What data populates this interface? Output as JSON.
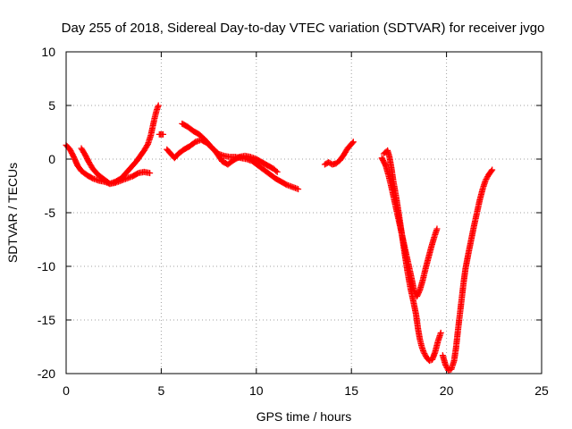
{
  "chart_data": {
    "type": "scatter",
    "title": "Day 255 of 2018, Sidereal Day-to-day VTEC variation (SDTVAR) for receiver jvgo",
    "xlabel": "GPS time / hours",
    "ylabel": "SDTVAR / TECUs",
    "xlim": [
      0,
      25
    ],
    "ylim": [
      -20,
      10
    ],
    "xticks": [
      0,
      5,
      10,
      15,
      20,
      25
    ],
    "yticks": [
      -20,
      -15,
      -10,
      -5,
      0,
      5,
      10
    ],
    "grid": true,
    "marker": "+",
    "color": "#ff0000",
    "segments": [
      [
        [
          0.0,
          1.3
        ],
        [
          0.2,
          0.9
        ],
        [
          0.4,
          0.2
        ],
        [
          0.6,
          -0.6
        ],
        [
          0.8,
          -1.1
        ],
        [
          1.1,
          -1.5
        ],
        [
          1.4,
          -1.8
        ],
        [
          1.7,
          -2.0
        ],
        [
          2.0,
          -2.1
        ],
        [
          2.3,
          -2.3
        ],
        [
          2.6,
          -2.2
        ],
        [
          2.9,
          -2.0
        ],
        [
          3.2,
          -1.8
        ],
        [
          3.5,
          -1.6
        ],
        [
          3.8,
          -1.3
        ],
        [
          4.1,
          -1.2
        ],
        [
          4.4,
          -1.3
        ]
      ],
      [
        [
          0.8,
          1.0
        ],
        [
          1.0,
          0.4
        ],
        [
          1.2,
          -0.3
        ],
        [
          1.4,
          -0.9
        ],
        [
          1.7,
          -1.5
        ],
        [
          2.0,
          -1.9
        ],
        [
          2.3,
          -2.3
        ],
        [
          2.6,
          -2.1
        ],
        [
          2.9,
          -1.8
        ],
        [
          3.1,
          -1.4
        ],
        [
          3.3,
          -1.0
        ],
        [
          3.5,
          -0.6
        ],
        [
          3.7,
          -0.2
        ],
        [
          3.9,
          0.3
        ],
        [
          4.1,
          0.8
        ],
        [
          4.3,
          1.4
        ],
        [
          4.45,
          2.2
        ],
        [
          4.55,
          3.0
        ],
        [
          4.65,
          3.8
        ],
        [
          4.75,
          4.5
        ],
        [
          4.85,
          5.0
        ]
      ],
      [
        [
          4.9,
          2.3
        ],
        [
          5.1,
          2.3
        ]
      ],
      [
        [
          5.3,
          0.9
        ],
        [
          5.5,
          0.5
        ],
        [
          5.7,
          0.1
        ],
        [
          5.9,
          0.5
        ],
        [
          6.2,
          0.9
        ],
        [
          6.5,
          1.2
        ],
        [
          6.8,
          1.6
        ],
        [
          7.1,
          1.8
        ],
        [
          7.4,
          1.5
        ],
        [
          7.7,
          1.0
        ],
        [
          8.0,
          0.5
        ],
        [
          8.3,
          0.3
        ],
        [
          8.6,
          0.2
        ],
        [
          8.9,
          0.2
        ],
        [
          9.2,
          0.1
        ],
        [
          9.5,
          0.0
        ],
        [
          9.8,
          -0.2
        ],
        [
          10.1,
          -0.6
        ],
        [
          10.4,
          -1.0
        ],
        [
          10.7,
          -1.4
        ],
        [
          11.0,
          -1.8
        ],
        [
          11.3,
          -2.1
        ],
        [
          11.6,
          -2.4
        ],
        [
          11.9,
          -2.6
        ],
        [
          12.2,
          -2.8
        ]
      ],
      [
        [
          6.1,
          3.3
        ],
        [
          6.4,
          3.0
        ],
        [
          6.7,
          2.6
        ],
        [
          7.0,
          2.3
        ],
        [
          7.3,
          1.8
        ],
        [
          7.6,
          1.2
        ],
        [
          7.9,
          0.6
        ],
        [
          8.2,
          -0.2
        ],
        [
          8.5,
          -0.5
        ],
        [
          8.8,
          -0.1
        ],
        [
          9.1,
          0.2
        ],
        [
          9.4,
          0.3
        ],
        [
          9.7,
          0.2
        ],
        [
          10.0,
          0.0
        ],
        [
          10.3,
          -0.3
        ],
        [
          10.6,
          -0.6
        ],
        [
          10.9,
          -0.9
        ],
        [
          11.1,
          -1.2
        ]
      ],
      [
        [
          13.6,
          -0.5
        ],
        [
          13.8,
          -0.3
        ],
        [
          14.0,
          -0.5
        ],
        [
          14.2,
          -0.4
        ],
        [
          14.4,
          -0.1
        ],
        [
          14.6,
          0.4
        ],
        [
          14.8,
          1.0
        ],
        [
          15.0,
          1.4
        ],
        [
          15.1,
          1.6
        ]
      ],
      [
        [
          16.7,
          0.5
        ],
        [
          16.9,
          0.8
        ],
        [
          17.0,
          0.2
        ],
        [
          17.1,
          -0.8
        ],
        [
          17.2,
          -2.0
        ],
        [
          17.35,
          -3.5
        ],
        [
          17.5,
          -5.2
        ],
        [
          17.65,
          -7.0
        ],
        [
          17.8,
          -8.8
        ],
        [
          17.95,
          -10.5
        ],
        [
          18.1,
          -12.0
        ],
        [
          18.25,
          -13.2
        ],
        [
          18.4,
          -14.5
        ],
        [
          18.5,
          -15.8
        ],
        [
          18.6,
          -16.8
        ],
        [
          18.7,
          -17.5
        ],
        [
          18.8,
          -18.0
        ],
        [
          18.95,
          -18.5
        ],
        [
          19.1,
          -18.8
        ],
        [
          19.25,
          -18.7
        ],
        [
          19.4,
          -18.0
        ],
        [
          19.55,
          -17.0
        ],
        [
          19.7,
          -16.2
        ]
      ],
      [
        [
          16.6,
          0.1
        ],
        [
          16.8,
          -0.6
        ],
        [
          16.95,
          -1.5
        ],
        [
          17.1,
          -2.6
        ],
        [
          17.25,
          -3.8
        ],
        [
          17.4,
          -5.0
        ],
        [
          17.55,
          -6.2
        ],
        [
          17.7,
          -7.4
        ],
        [
          17.85,
          -8.6
        ],
        [
          18.0,
          -9.8
        ],
        [
          18.15,
          -11.0
        ],
        [
          18.3,
          -12.3
        ],
        [
          18.45,
          -12.8
        ],
        [
          18.6,
          -12.2
        ],
        [
          18.75,
          -11.3
        ],
        [
          18.9,
          -10.2
        ],
        [
          19.05,
          -9.2
        ],
        [
          19.2,
          -8.2
        ],
        [
          19.35,
          -7.3
        ],
        [
          19.5,
          -6.5
        ]
      ],
      [
        [
          19.8,
          -18.3
        ],
        [
          19.95,
          -19.2
        ],
        [
          20.1,
          -19.7
        ],
        [
          20.25,
          -19.6
        ],
        [
          20.4,
          -18.8
        ],
        [
          20.5,
          -17.6
        ],
        [
          20.6,
          -16.0
        ],
        [
          20.7,
          -14.5
        ],
        [
          20.8,
          -13.0
        ],
        [
          20.9,
          -11.5
        ],
        [
          21.0,
          -10.2
        ],
        [
          21.15,
          -8.8
        ],
        [
          21.3,
          -7.5
        ],
        [
          21.45,
          -6.2
        ],
        [
          21.6,
          -5.0
        ],
        [
          21.75,
          -3.8
        ],
        [
          21.9,
          -2.8
        ],
        [
          22.05,
          -2.0
        ],
        [
          22.2,
          -1.5
        ],
        [
          22.4,
          -1.0
        ]
      ]
    ]
  }
}
